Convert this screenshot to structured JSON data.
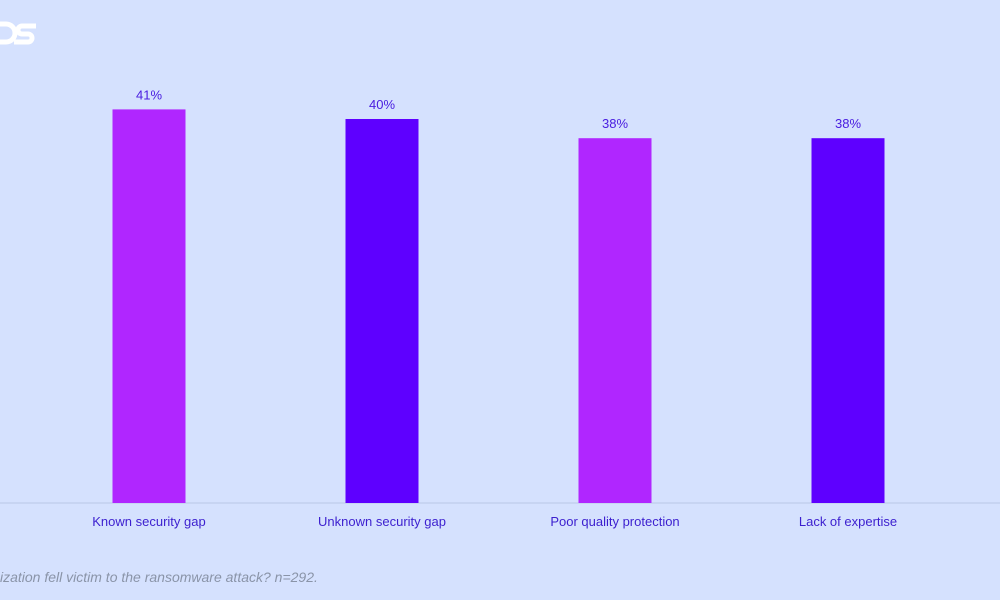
{
  "footnote": "ization fell victim to the ransomware attack? n=292.",
  "chart_data": {
    "type": "bar",
    "categories": [
      "Known security gap",
      "Unknown security gap",
      "Poor quality protection",
      "Lack of expertise"
    ],
    "values": [
      41,
      40,
      38,
      38
    ],
    "data_labels": [
      "41%",
      "40%",
      "38%",
      "38%"
    ],
    "colors": [
      "#b026ff",
      "#5e00ff",
      "#b026ff",
      "#5e00ff"
    ],
    "ylim": [
      0,
      45
    ],
    "xlabel": "",
    "ylabel": "",
    "grid": false,
    "legend": "none"
  }
}
